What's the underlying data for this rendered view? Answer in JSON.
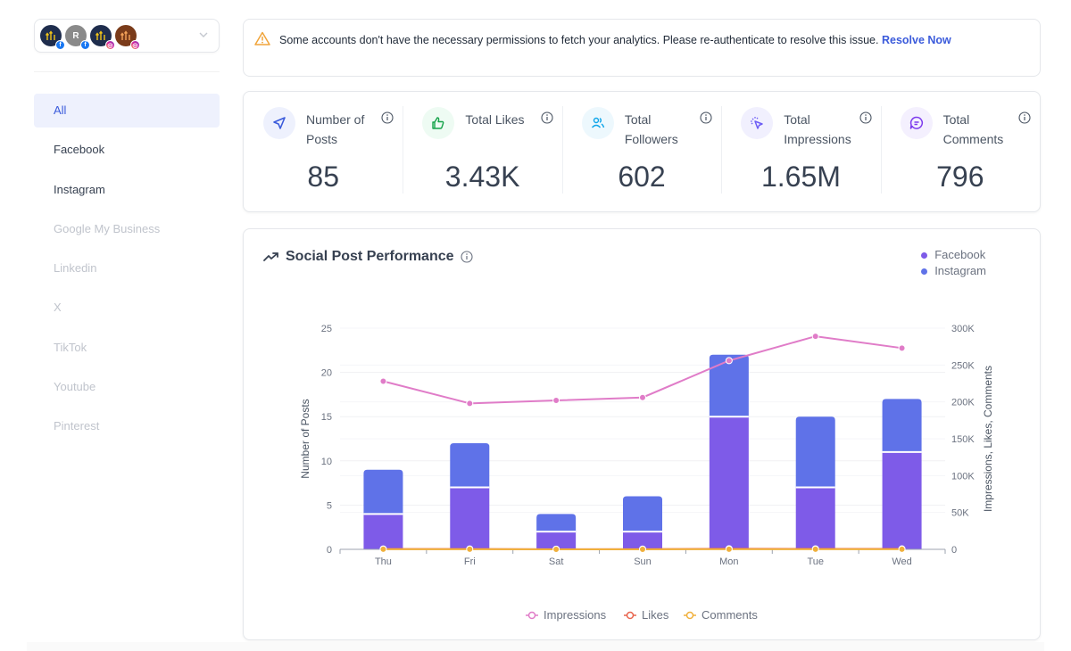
{
  "sidebar": {
    "accounts": [
      {
        "initial": "",
        "bg": "#1f2d4d",
        "network": "facebook"
      },
      {
        "initial": "R",
        "bg": "#8a8a8a",
        "network": "facebook"
      },
      {
        "initial": "",
        "bg": "#1f2d4d",
        "network": "instagram"
      },
      {
        "initial": "",
        "bg": "#7a3b1a",
        "network": "instagram"
      }
    ],
    "items": [
      {
        "label": "All",
        "state": "active"
      },
      {
        "label": "Facebook",
        "state": "enabled"
      },
      {
        "label": "Instagram",
        "state": "enabled"
      },
      {
        "label": "Google My Business",
        "state": "disabled"
      },
      {
        "label": "Linkedin",
        "state": "disabled"
      },
      {
        "label": "X",
        "state": "disabled"
      },
      {
        "label": "TikTok",
        "state": "disabled"
      },
      {
        "label": "Youtube",
        "state": "disabled"
      },
      {
        "label": "Pinterest",
        "state": "disabled"
      }
    ]
  },
  "alert": {
    "icon": "warning-triangle-icon",
    "message": "Some accounts don't have the necessary permissions to fetch your analytics. Please re-authenticate to resolve this issue.",
    "link_label": "Resolve Now"
  },
  "stats": [
    {
      "label": "Number of Posts",
      "value": "85",
      "icon": "send-icon",
      "icon_color": "#3b5bdb",
      "icon_bg": "#eef1fd"
    },
    {
      "label": "Total Likes",
      "value": "3.43K",
      "icon": "thumbs-up-icon",
      "icon_color": "#16a34a",
      "icon_bg": "#eefbf3"
    },
    {
      "label": "Total Followers",
      "value": "602",
      "icon": "users-icon",
      "icon_color": "#0ea5e9",
      "icon_bg": "#edf8fd"
    },
    {
      "label": "Total Impressions",
      "value": "1.65M",
      "icon": "cursor-click-icon",
      "icon_color": "#6d5df5",
      "icon_bg": "#f1f0fe"
    },
    {
      "label": "Total Comments",
      "value": "796",
      "icon": "message-icon",
      "icon_color": "#7c3aed",
      "icon_bg": "#f4f0fe"
    }
  ],
  "chart_card": {
    "title": "Social Post Performance",
    "platform_legend": [
      {
        "label": "Facebook",
        "color": "#7e5be8"
      },
      {
        "label": "Instagram",
        "color": "#5f72e8"
      }
    ]
  },
  "chart_data": {
    "type": "bar",
    "title": "Social Post Performance",
    "categories": [
      "Thu",
      "Fri",
      "Sat",
      "Sun",
      "Mon",
      "Tue",
      "Wed"
    ],
    "stacked": true,
    "series": [
      {
        "name": "Facebook",
        "axis": "left",
        "color": "#7e5be8",
        "values": [
          4,
          7,
          2,
          2,
          15,
          7,
          11
        ]
      },
      {
        "name": "Instagram",
        "axis": "left",
        "color": "#5f72e8",
        "values": [
          5,
          5,
          2,
          4,
          7,
          8,
          6
        ]
      }
    ],
    "line_series": [
      {
        "name": "Impressions",
        "axis": "right",
        "color": "#e07cc8",
        "values": [
          228000,
          198000,
          202000,
          206000,
          256000,
          289000,
          273000
        ]
      },
      {
        "name": "Likes",
        "axis": "right",
        "color": "#e8644d",
        "values": [
          500,
          450,
          200,
          300,
          800,
          600,
          580
        ]
      },
      {
        "name": "Comments",
        "axis": "right",
        "color": "#f0b03c",
        "values": [
          110,
          100,
          50,
          70,
          200,
          140,
          126
        ]
      }
    ],
    "ylabel": "Number of Posts",
    "ylabel_right": "Impressions, Likes, Comments",
    "ylim": [
      0,
      25
    ],
    "yticks": [
      "0",
      "5",
      "10",
      "15",
      "20",
      "25"
    ],
    "ylim_right": [
      0,
      300000
    ],
    "yticks_right": [
      "0",
      "50K",
      "100K",
      "150K",
      "200K",
      "250K",
      "300K"
    ],
    "grid": true,
    "bottom_legend": [
      "Impressions",
      "Likes",
      "Comments"
    ]
  }
}
